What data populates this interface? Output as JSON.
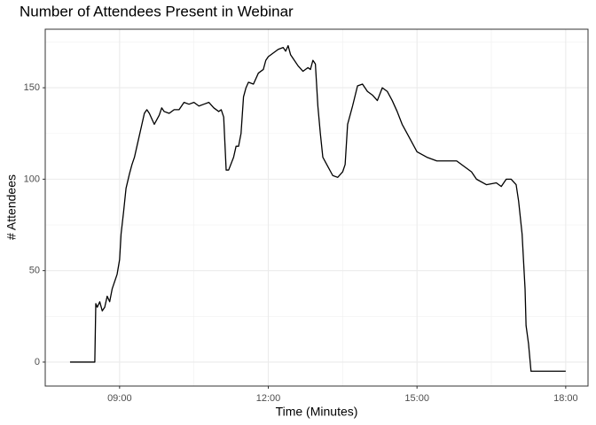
{
  "chart_data": {
    "type": "line",
    "title": "Number of Attendees Present in Webinar",
    "x_label": "Time (Minutes)",
    "y_label": "# Attendees",
    "x": [
      8.0,
      8.5,
      8.52,
      8.55,
      8.6,
      8.65,
      8.7,
      8.75,
      8.8,
      8.85,
      8.9,
      8.95,
      9.0,
      9.03,
      9.08,
      9.13,
      9.2,
      9.25,
      9.3,
      9.35,
      9.4,
      9.45,
      9.5,
      9.55,
      9.6,
      9.7,
      9.8,
      9.85,
      9.9,
      10.0,
      10.1,
      10.2,
      10.3,
      10.4,
      10.5,
      10.6,
      10.7,
      10.8,
      10.9,
      11.0,
      11.05,
      11.1,
      11.15,
      11.2,
      11.3,
      11.35,
      11.4,
      11.45,
      11.5,
      11.55,
      11.6,
      11.7,
      11.8,
      11.9,
      11.95,
      12.0,
      12.1,
      12.2,
      12.3,
      12.35,
      12.4,
      12.45,
      12.5,
      12.6,
      12.7,
      12.8,
      12.85,
      12.9,
      12.95,
      13.0,
      13.05,
      13.1,
      13.2,
      13.3,
      13.4,
      13.5,
      13.55,
      13.6,
      13.7,
      13.8,
      13.9,
      14.0,
      14.1,
      14.2,
      14.3,
      14.4,
      14.5,
      14.6,
      14.7,
      14.8,
      14.9,
      15.0,
      15.2,
      15.4,
      15.6,
      15.8,
      16.0,
      16.1,
      16.2,
      16.4,
      16.6,
      16.7,
      16.8,
      16.9,
      17.0,
      17.05,
      17.12,
      17.18,
      17.2,
      17.25,
      17.3,
      18.0
    ],
    "series": [
      {
        "name": "Attendees",
        "color": "#000000",
        "values": [
          0,
          0,
          32,
          30,
          33,
          28,
          30,
          36,
          33,
          40,
          44,
          48,
          56,
          70,
          82,
          95,
          103,
          108,
          112,
          118,
          124,
          130,
          136,
          138,
          136,
          130,
          135,
          139,
          137,
          136,
          138,
          138,
          142,
          141,
          142,
          140,
          141,
          142,
          139,
          137,
          138,
          134,
          105,
          105,
          112,
          118,
          118,
          125,
          145,
          150,
          153,
          152,
          158,
          160,
          165,
          167,
          169,
          171,
          172,
          170,
          173,
          168,
          166,
          162,
          159,
          161,
          160,
          165,
          163,
          140,
          125,
          112,
          107,
          102,
          101,
          104,
          108,
          130,
          140,
          151,
          152,
          148,
          146,
          143,
          150,
          148,
          143,
          137,
          130,
          125,
          120,
          115,
          112,
          110,
          110,
          110,
          106,
          104,
          100,
          97,
          98,
          96,
          100,
          100,
          97,
          88,
          70,
          40,
          20,
          10,
          -5,
          -5
        ]
      }
    ],
    "xlim": [
      7.5,
      18.45
    ],
    "ylim": [
      -13.1,
      182
    ],
    "xticks": [
      {
        "value": 9,
        "label": "09:00"
      },
      {
        "value": 12,
        "label": "12:00"
      },
      {
        "value": 15,
        "label": "15:00"
      },
      {
        "value": 18,
        "label": "18:00"
      }
    ],
    "yticks": [
      0,
      50,
      100,
      150
    ],
    "grid": true
  }
}
